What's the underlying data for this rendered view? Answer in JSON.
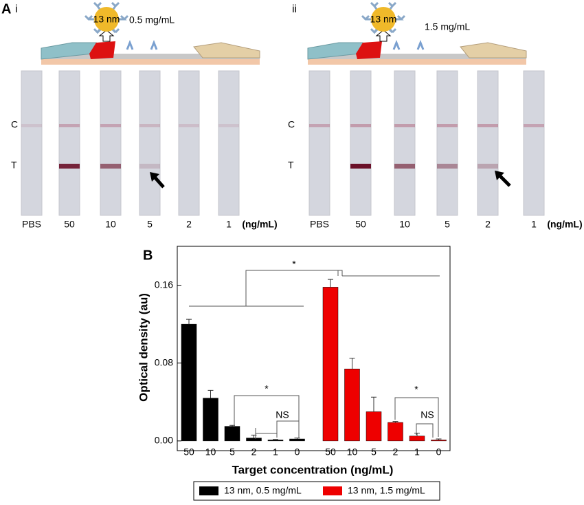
{
  "panel_a": {
    "label": "A",
    "subpanels": [
      {
        "label": "i",
        "particle": "13 nm",
        "concentration": "0.5 mg/mL",
        "line_labels": [
          "C",
          "T"
        ],
        "lanes": [
          "PBS",
          "50",
          "10",
          "5",
          "2",
          "1"
        ],
        "unit": "(ng/mL)"
      },
      {
        "label": "ii",
        "particle": "13 nm",
        "concentration": "1.5 mg/mL",
        "line_labels": [
          "C",
          "T"
        ],
        "lanes": [
          "PBS",
          "50",
          "10",
          "5",
          "2",
          "1"
        ],
        "unit": "(ng/mL)"
      }
    ]
  },
  "chart_data": {
    "type": "bar",
    "label": "B",
    "y_label": "Optical density (au)",
    "x_label": "Target concentration (ng/mL)",
    "categories": [
      "50",
      "10",
      "5",
      "2",
      "1",
      "0"
    ],
    "series": [
      {
        "name": "13 nm, 0.5 mg/mL",
        "color": "#000000",
        "values": [
          0.12,
          0.044,
          0.015,
          0.003,
          0.001,
          0.002
        ],
        "errors": [
          0.005,
          0.008,
          0.001,
          0.003,
          0.0005,
          0.001
        ]
      },
      {
        "name": "13 nm, 1.5 mg/mL",
        "color": "#ee0000",
        "values": [
          0.158,
          0.074,
          0.03,
          0.019,
          0.005,
          0.001
        ],
        "errors": [
          0.008,
          0.011,
          0.015,
          0.001,
          0.003,
          0.001
        ]
      }
    ],
    "ylim": [
      -0.01,
      0.2
    ],
    "yticks": [
      {
        "value": 0,
        "label": "0.00"
      },
      {
        "value": 0.08,
        "label": "0.08"
      },
      {
        "value": 0.16,
        "label": "0.16"
      }
    ],
    "annotations": [
      "*",
      "*",
      "NS",
      "*",
      "NS"
    ]
  }
}
